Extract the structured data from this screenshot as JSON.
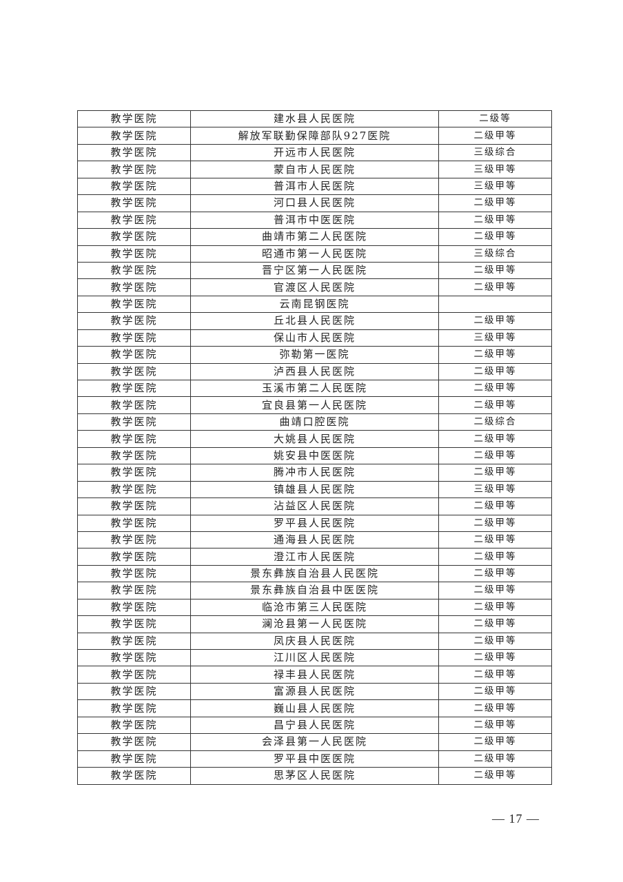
{
  "table": {
    "rows": [
      [
        "教学医院",
        "建水县人民医院",
        "二级等"
      ],
      [
        "教学医院",
        "解放军联勤保障部队927医院",
        "二级甲等"
      ],
      [
        "教学医院",
        "开远市人民医院",
        "三级综合"
      ],
      [
        "教学医院",
        "蒙自市人民医院",
        "三级甲等"
      ],
      [
        "教学医院",
        "普洱市人民医院",
        "三级甲等"
      ],
      [
        "教学医院",
        "河口县人民医院",
        "二级甲等"
      ],
      [
        "教学医院",
        "普洱市中医医院",
        "二级甲等"
      ],
      [
        "教学医院",
        "曲靖市第二人民医院",
        "二级甲等"
      ],
      [
        "教学医院",
        "昭通市第一人民医院",
        "三级综合"
      ],
      [
        "教学医院",
        "晋宁区第一人民医院",
        "二级甲等"
      ],
      [
        "教学医院",
        "官渡区人民医院",
        "二级甲等"
      ],
      [
        "教学医院",
        "云南昆钢医院",
        ""
      ],
      [
        "教学医院",
        "丘北县人民医院",
        "二级甲等"
      ],
      [
        "教学医院",
        "保山市人民医院",
        "三级甲等"
      ],
      [
        "教学医院",
        "弥勒第一医院",
        "二级甲等"
      ],
      [
        "教学医院",
        "泸西县人民医院",
        "二级甲等"
      ],
      [
        "教学医院",
        "玉溪市第二人民医院",
        "二级甲等"
      ],
      [
        "教学医院",
        "宜良县第一人民医院",
        "二级甲等"
      ],
      [
        "教学医院",
        "曲靖口腔医院",
        "二级综合"
      ],
      [
        "教学医院",
        "大姚县人民医院",
        "二级甲等"
      ],
      [
        "教学医院",
        "姚安县中医医院",
        "二级甲等"
      ],
      [
        "教学医院",
        "腾冲市人民医院",
        "二级甲等"
      ],
      [
        "教学医院",
        "镇雄县人民医院",
        "三级甲等"
      ],
      [
        "教学医院",
        "沾益区人民医院",
        "二级甲等"
      ],
      [
        "教学医院",
        "罗平县人民医院",
        "二级甲等"
      ],
      [
        "教学医院",
        "通海县人民医院",
        "二级甲等"
      ],
      [
        "教学医院",
        "澄江市人民医院",
        "二级甲等"
      ],
      [
        "教学医院",
        "景东彝族自治县人民医院",
        "二级甲等"
      ],
      [
        "教学医院",
        "景东彝族自治县中医医院",
        "二级甲等"
      ],
      [
        "教学医院",
        "临沧市第三人民医院",
        "二级甲等"
      ],
      [
        "教学医院",
        "澜沧县第一人民医院",
        "二级甲等"
      ],
      [
        "教学医院",
        "凤庆县人民医院",
        "二级甲等"
      ],
      [
        "教学医院",
        "江川区人民医院",
        "二级甲等"
      ],
      [
        "教学医院",
        "禄丰县人民医院",
        "二级甲等"
      ],
      [
        "教学医院",
        "富源县人民医院",
        "二级甲等"
      ],
      [
        "教学医院",
        "巍山县人民医院",
        "二级甲等"
      ],
      [
        "教学医院",
        "昌宁县人民医院",
        "二级甲等"
      ],
      [
        "教学医院",
        "会泽县第一人民医院",
        "二级甲等"
      ],
      [
        "教学医院",
        "罗平县中医医院",
        "二级甲等"
      ],
      [
        "教学医院",
        "思茅区人民医院",
        "二级甲等"
      ]
    ]
  },
  "footer": {
    "page_number": "— 17 —"
  }
}
